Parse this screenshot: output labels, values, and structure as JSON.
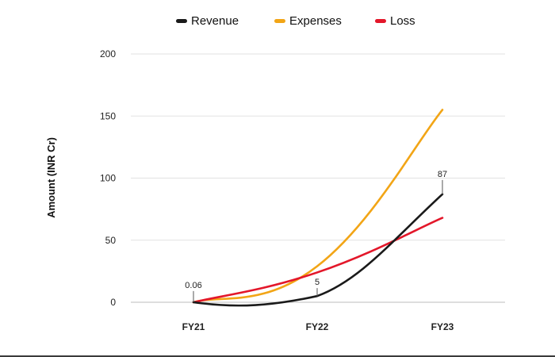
{
  "chart_data": {
    "type": "line",
    "title": "",
    "xlabel": "",
    "ylabel": "Amount (INR Cr)",
    "categories": [
      "FY21",
      "FY22",
      "FY23"
    ],
    "ylim": [
      0,
      200
    ],
    "yticks": [
      0,
      50,
      100,
      150,
      200
    ],
    "grid": true,
    "legend_position": "top-center",
    "series": [
      {
        "name": "Revenue",
        "values": [
          0.06,
          5,
          87
        ],
        "color": "#1a1a1a",
        "data_labels": [
          "0.06",
          "5",
          "87"
        ]
      },
      {
        "name": "Expenses",
        "values": [
          0,
          29,
          155
        ],
        "color": "#f2a516"
      },
      {
        "name": "Loss",
        "values": [
          0,
          24,
          68
        ],
        "color": "#e3172a"
      }
    ]
  }
}
